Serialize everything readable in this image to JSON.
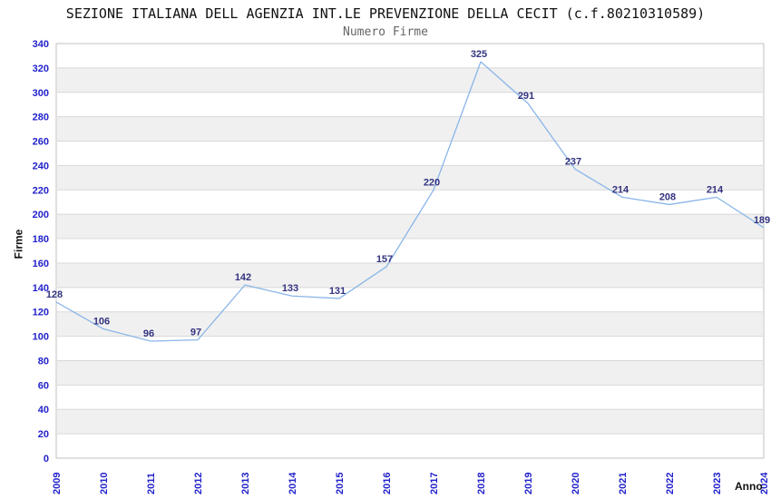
{
  "chart_data": {
    "type": "line",
    "title": "SEZIONE ITALIANA DELL AGENZIA INT.LE PREVENZIONE DELLA CECIT (c.f.80210310589)",
    "subtitle": "Numero Firme",
    "xlabel": "Anno",
    "ylabel": "Firme",
    "categories": [
      "2009",
      "2010",
      "2011",
      "2012",
      "2013",
      "2014",
      "2015",
      "2016",
      "2017",
      "2018",
      "2019",
      "2020",
      "2021",
      "2022",
      "2023",
      "2024"
    ],
    "values": [
      128,
      106,
      96,
      97,
      142,
      133,
      131,
      157,
      220,
      325,
      291,
      237,
      214,
      208,
      214,
      189
    ],
    "ylim": [
      0,
      340
    ],
    "ytick_step": 20,
    "grid": "horizontal-alternating-bands",
    "legend": "none",
    "data_labels_visible": true,
    "colors": {
      "line": "#8ab5e8",
      "tick_label": "#2222cc",
      "data_label": "#333380",
      "band": "#f0f0f0",
      "gridline": "#d8d8d8",
      "frame": "#c0c0c0",
      "title": "#111111",
      "subtitle": "#666666",
      "axis_title": "#111111"
    }
  }
}
